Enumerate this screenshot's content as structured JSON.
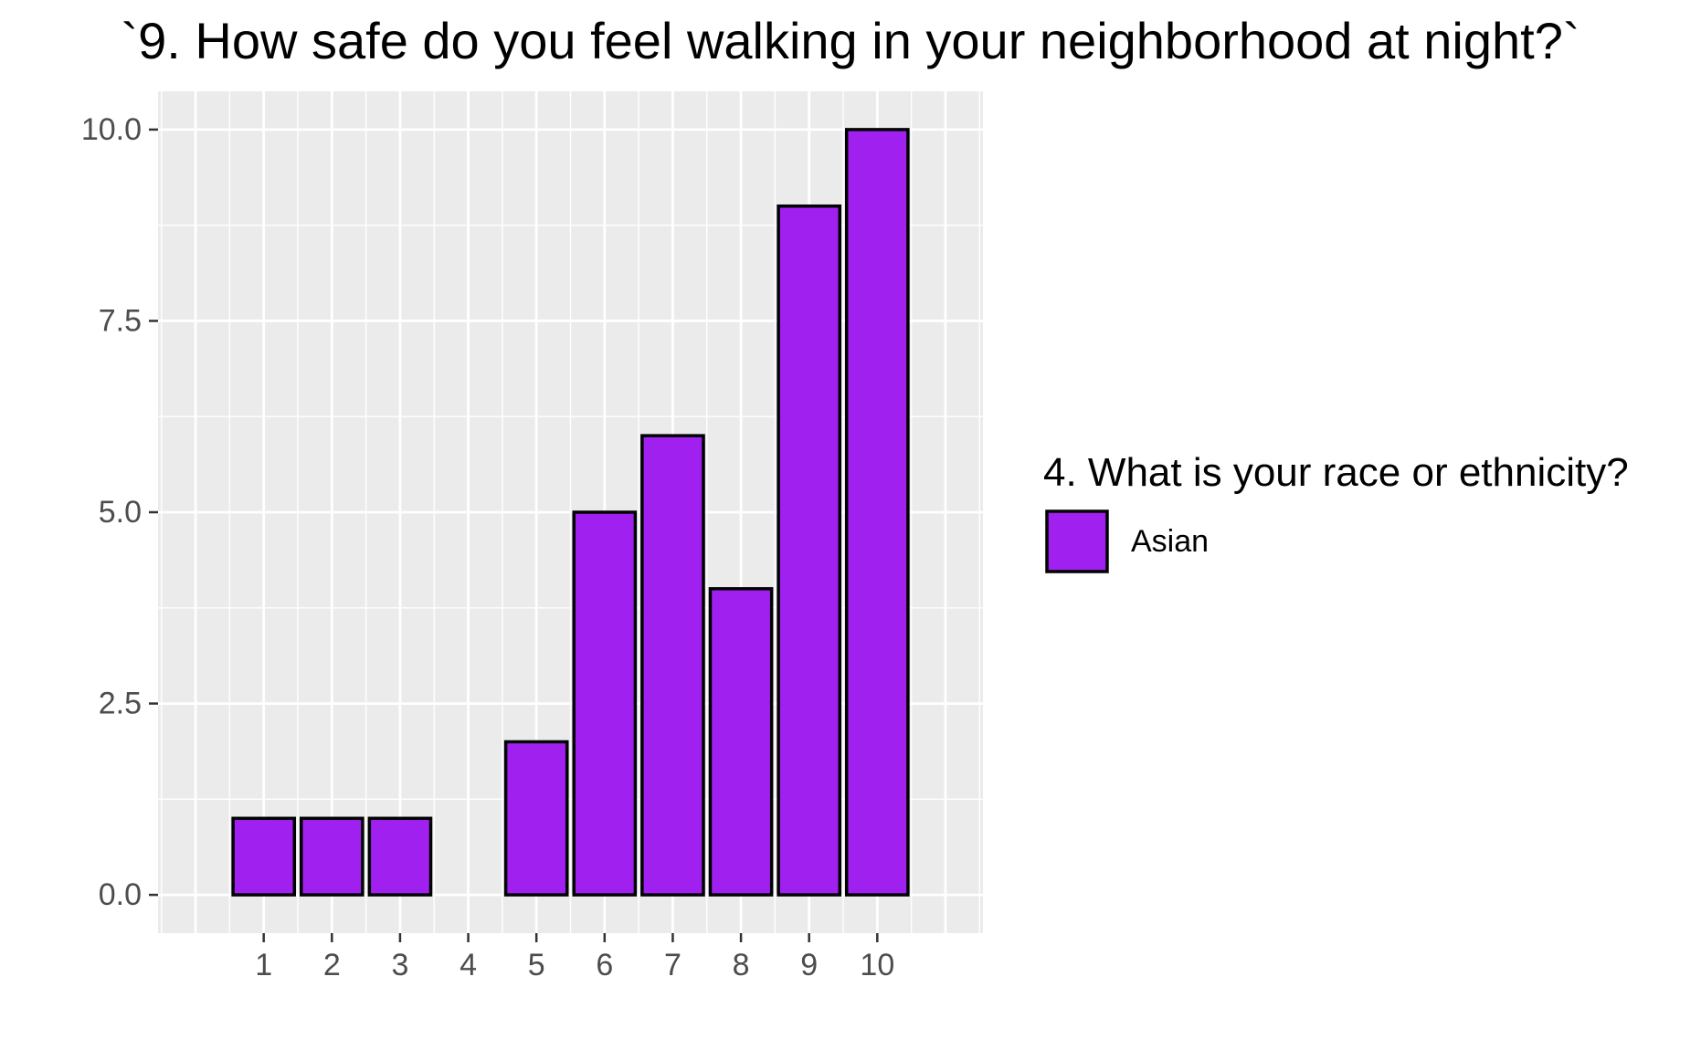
{
  "chart_data": {
    "type": "bar",
    "title": "`9. How safe do you feel walking in your neighborhood at night?`",
    "xlabel": "",
    "ylabel": "",
    "categories": [
      "1",
      "2",
      "3",
      "4",
      "5",
      "6",
      "7",
      "8",
      "9",
      "10"
    ],
    "x": [
      1,
      2,
      3,
      4,
      5,
      6,
      7,
      8,
      9,
      10
    ],
    "series": [
      {
        "name": "Asian",
        "values": [
          1,
          1,
          1,
          0,
          2,
          5,
          6,
          4,
          9,
          10
        ],
        "color": "#A020F0"
      }
    ],
    "xlim": [
      -0.55,
      11.55
    ],
    "ylim": [
      -0.5,
      10.5
    ],
    "y_ticks": [
      0,
      2.5,
      5,
      7.5,
      10
    ],
    "y_tick_labels": [
      "0.0",
      "2.5",
      "5.0",
      "7.5",
      "10.0"
    ],
    "legend": {
      "title": "4. What is your race or ethnicity?",
      "position": "right",
      "entries": [
        "Asian"
      ]
    },
    "grid": true,
    "panel_background": "#EBEBEB",
    "grid_color": "#FFFFFF",
    "bar_outline_color": "#000000"
  }
}
